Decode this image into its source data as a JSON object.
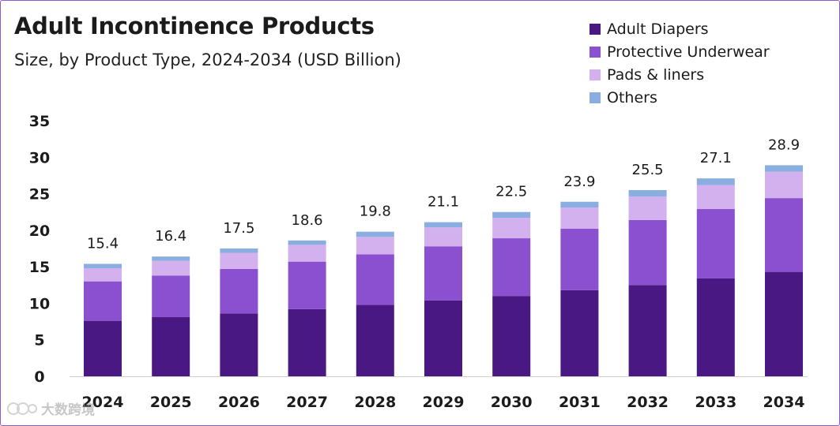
{
  "title": "Adult Incontinence Products",
  "subtitle": "Size, by Product Type, 2024-2034 (USD Billion)",
  "watermark": "大数跨境",
  "colors": {
    "adult_diapers": "#4a1882",
    "protective_underwear": "#8b50cf",
    "pads_liners": "#d3b0ee",
    "others": "#8aaee0",
    "border": "#8d5bd0"
  },
  "chart_data": {
    "type": "bar",
    "stacked": true,
    "categories": [
      "2024",
      "2025",
      "2026",
      "2027",
      "2028",
      "2029",
      "2030",
      "2031",
      "2032",
      "2033",
      "2034"
    ],
    "series": [
      {
        "name": "Adult Diapers",
        "values": [
          7.6,
          8.1,
          8.6,
          9.2,
          9.8,
          10.4,
          11.0,
          11.8,
          12.5,
          13.4,
          14.3
        ]
      },
      {
        "name": "Protective Underwear",
        "values": [
          5.4,
          5.7,
          6.1,
          6.5,
          6.9,
          7.4,
          7.9,
          8.4,
          8.9,
          9.5,
          10.1
        ]
      },
      {
        "name": "Pads & liners",
        "values": [
          1.8,
          2.0,
          2.2,
          2.3,
          2.4,
          2.6,
          2.8,
          2.9,
          3.2,
          3.3,
          3.6
        ]
      },
      {
        "name": "Others",
        "values": [
          0.6,
          0.6,
          0.6,
          0.6,
          0.7,
          0.7,
          0.8,
          0.8,
          0.9,
          0.9,
          0.9
        ]
      }
    ],
    "totals": [
      "15.4",
      "16.4",
      "17.5",
      "18.6",
      "19.8",
      "21.1",
      "22.5",
      "23.9",
      "25.5",
      "27.1",
      "28.9"
    ],
    "yticks": [
      "0",
      "5",
      "10",
      "15",
      "20",
      "25",
      "30",
      "35"
    ],
    "ylim": [
      0,
      35
    ],
    "grid": false,
    "legend_position": "top-right"
  }
}
